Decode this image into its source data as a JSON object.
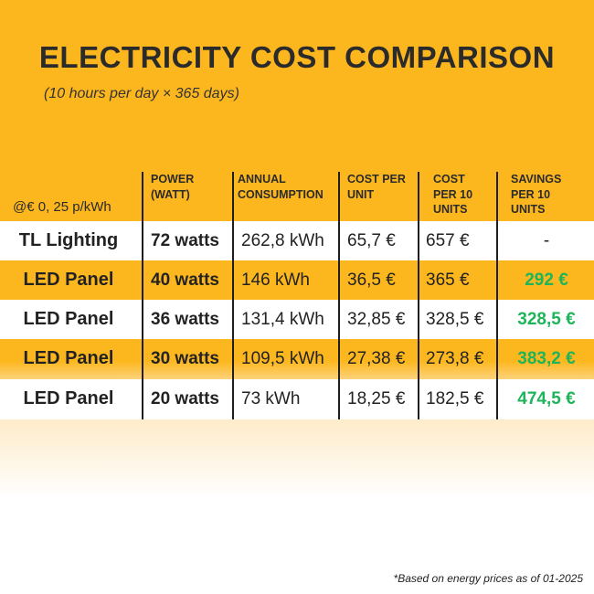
{
  "title": "ELECTRICITY COST COMPARISON",
  "subtitle": "(10 hours per day × 365 days)",
  "rate_label": "@€ 0, 25 p/kWh",
  "headers": [
    "POWER (WATT)",
    "ANNUAL CONSUMPTION",
    "COST PER UNIT",
    "COST PER 10 UNITS",
    "SAVINGS PER 10 UNITS"
  ],
  "rows": [
    {
      "name": "TL Lighting",
      "power": "72 watts",
      "annual": "262,8 kWh",
      "cost_unit": "65,7 €",
      "cost_10": "657 €",
      "savings": "-"
    },
    {
      "name": "LED Panel",
      "power": "40 watts",
      "annual": "146 kWh",
      "cost_unit": "36,5 €",
      "cost_10": "365 €",
      "savings": "292 €"
    },
    {
      "name": "LED Panel",
      "power": "36 watts",
      "annual": "131,4 kWh",
      "cost_unit": "32,85 €",
      "cost_10": "328,5 €",
      "savings": "328,5 €"
    },
    {
      "name": "LED Panel",
      "power": "30 watts",
      "annual": "109,5 kWh",
      "cost_unit": "27,38 €",
      "cost_10": "273,8 €",
      "savings": "383,2 €"
    },
    {
      "name": "LED Panel",
      "power": "20 watts",
      "annual": "73 kWh",
      "cost_unit": "18,25 €",
      "cost_10": "182,5 €",
      "savings": "474,5 €"
    }
  ],
  "footnote": "*Based on energy prices as of 01-2025",
  "colors": {
    "accent": "#fdb71e",
    "savings": "#1db45a",
    "text": "#2b2b2b"
  }
}
